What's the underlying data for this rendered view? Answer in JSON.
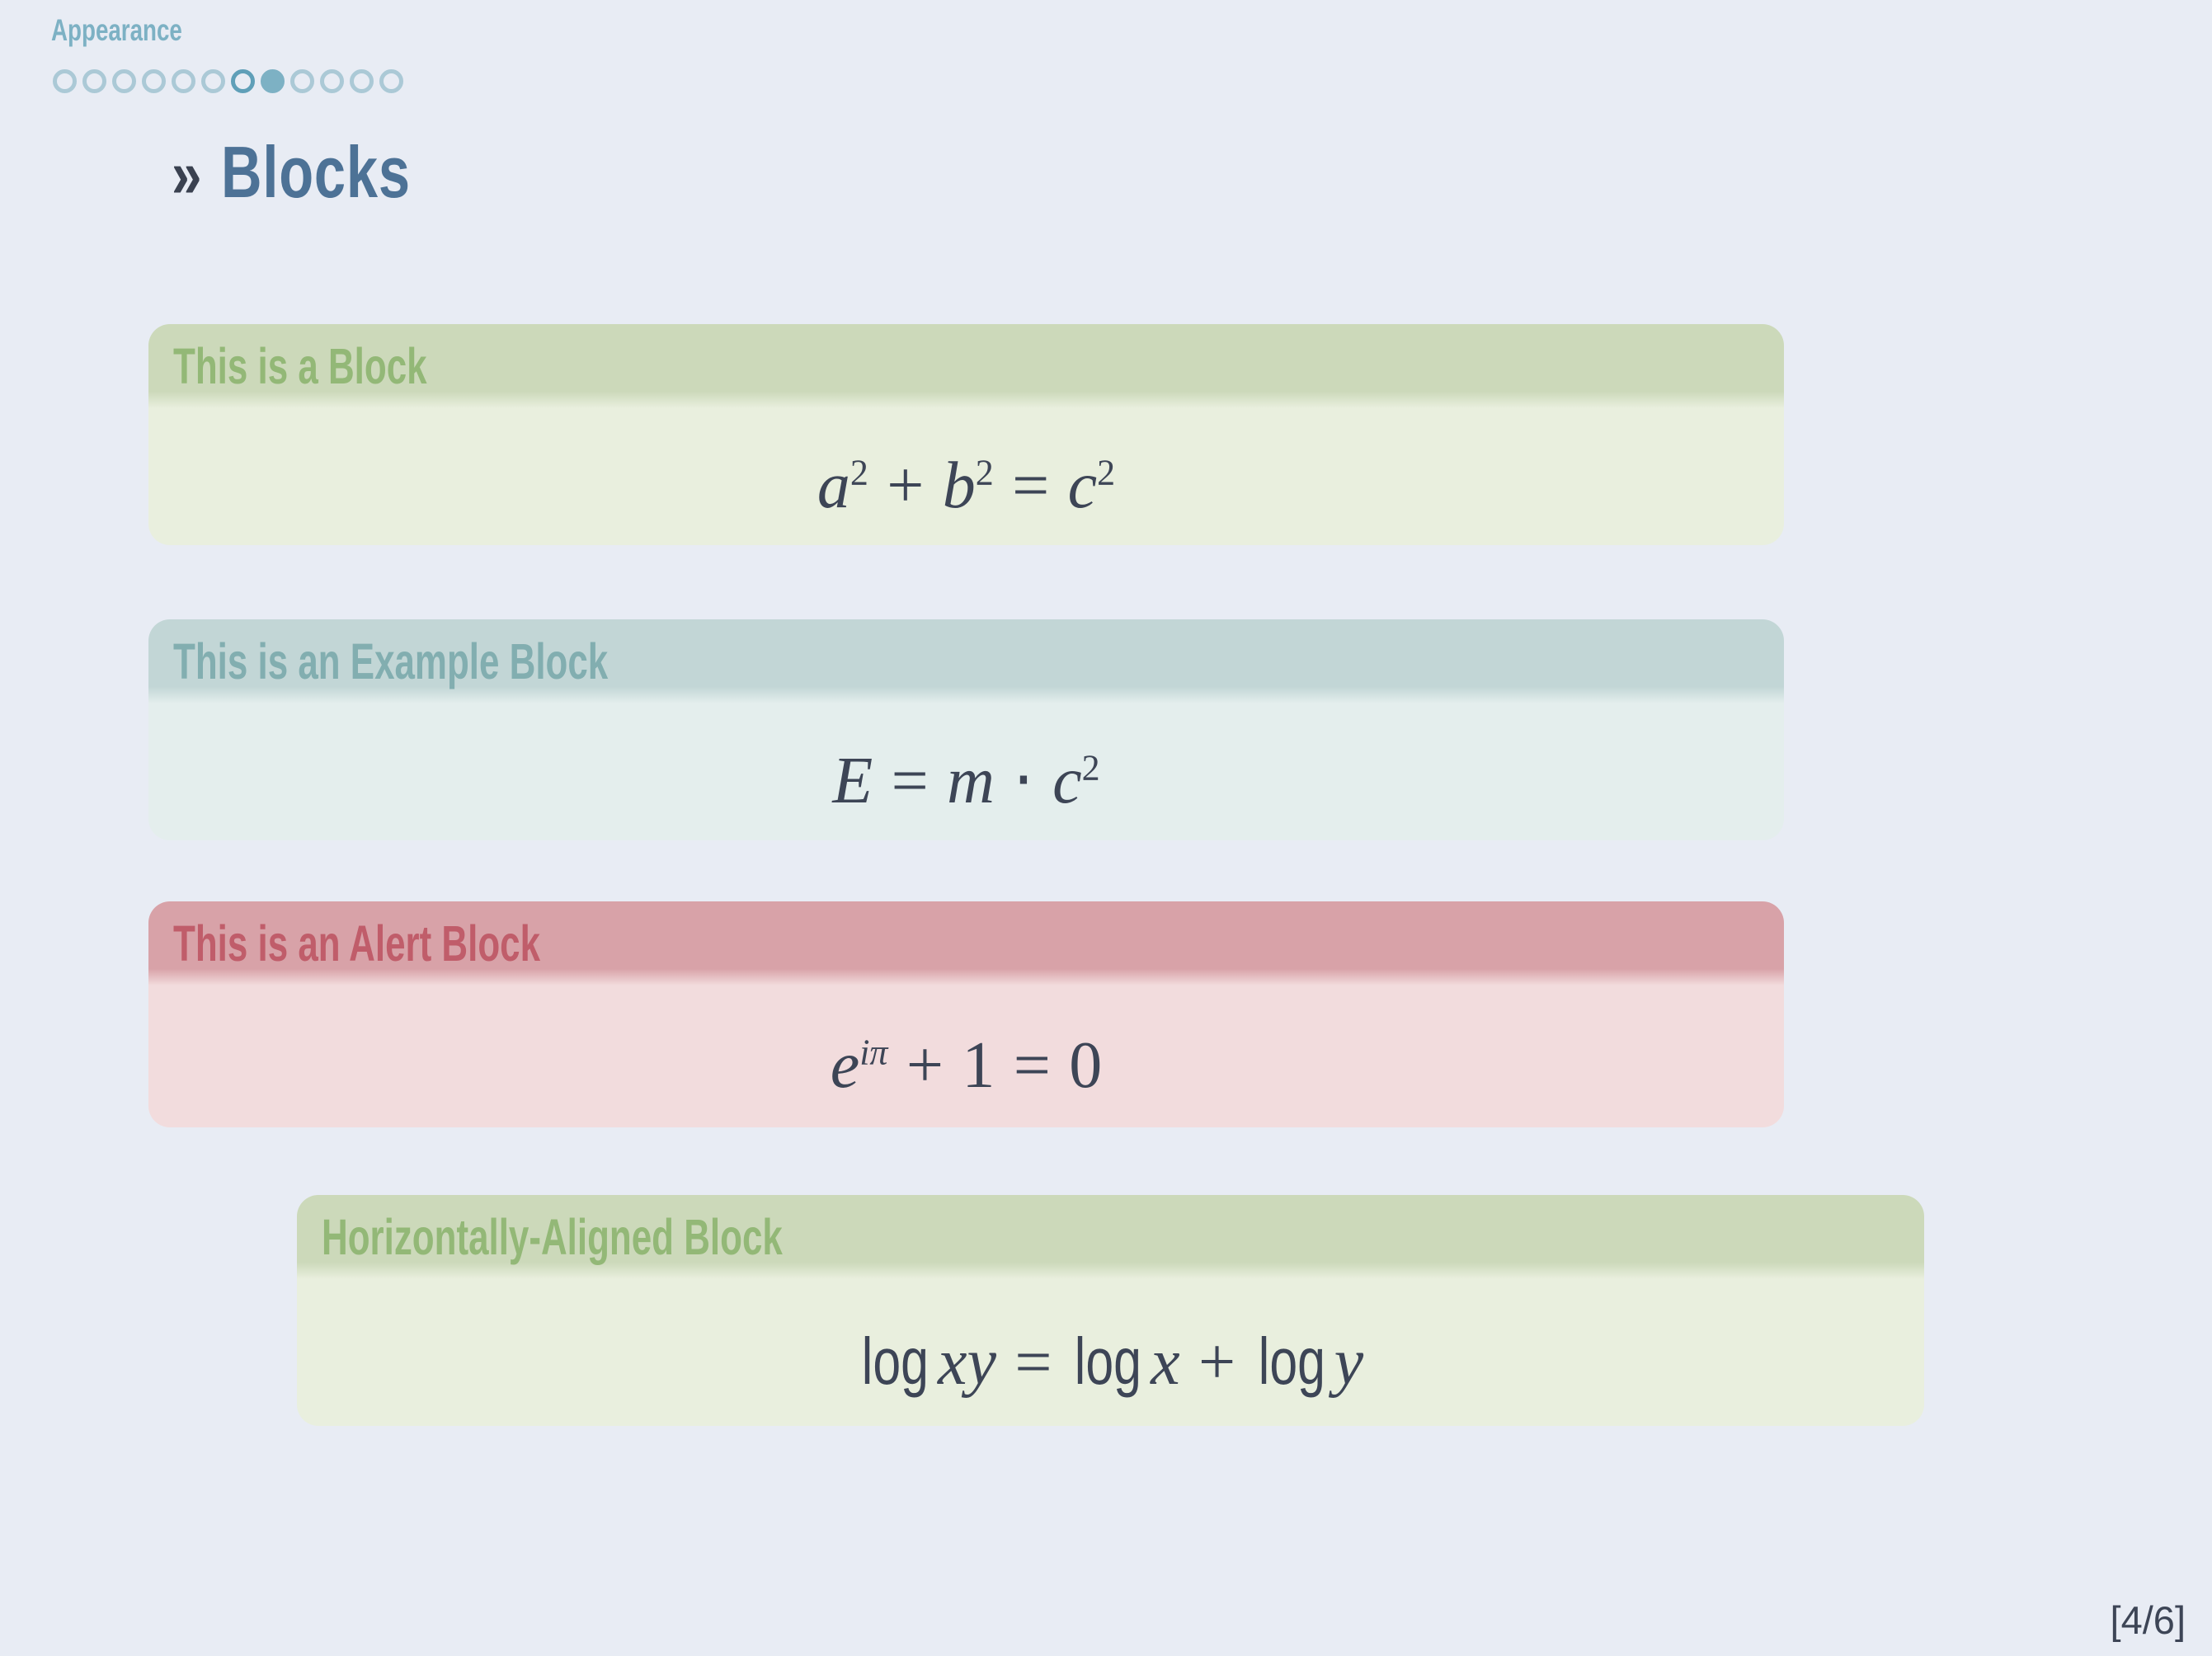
{
  "header": {
    "section_label": "Appearance"
  },
  "nav_dots": {
    "total": 12,
    "filled_index": 8,
    "ring_index": 7
  },
  "frame_title": {
    "marker": "»",
    "text": "Blocks"
  },
  "blocks": [
    {
      "title": "This is a Block",
      "variant": "green"
    },
    {
      "title": "This is an Example Block",
      "variant": "teal"
    },
    {
      "title": "This is an Alert Block",
      "variant": "red"
    },
    {
      "title": "Horizontally-Aligned Block",
      "variant": "green"
    }
  ],
  "formulas": {
    "pythagorean": {
      "a": "a",
      "a_sup": "2",
      "plus": "+",
      "b": "b",
      "b_sup": "2",
      "equals": "=",
      "c": "c",
      "c_sup": "2"
    },
    "einstein": {
      "E": "E",
      "equals": "=",
      "m": "m",
      "cdot": "⋅",
      "c": "c",
      "c_sup": "2"
    },
    "euler": {
      "base": "e",
      "exponent": "iπ",
      "plus": "+",
      "one": "1",
      "equals": "=",
      "zero": "0"
    },
    "logarithm": {
      "op1": "log",
      "arg1": "xy",
      "equals": "=",
      "op2": "log",
      "arg2": "x",
      "plus": "+",
      "op3": "log",
      "arg3": "y"
    }
  },
  "footer": {
    "page_indicator": "[4/6]"
  },
  "colors": {
    "background": "#e8ecf4",
    "accent_teal": "#7db1c4",
    "title_blue": "#4d7296",
    "marker_ink": "#3a4150",
    "formula_ink": "#3d4556",
    "green_header": "#ccd9ba",
    "green_title": "#93b877",
    "green_body": "#e9efde",
    "teal_header": "#c2d6d6",
    "teal_title": "#82aeb0",
    "teal_body": "#e4eeed",
    "red_header": "#d8a2a8",
    "red_title": "#c05d6a",
    "red_body": "#f2dcdd"
  }
}
